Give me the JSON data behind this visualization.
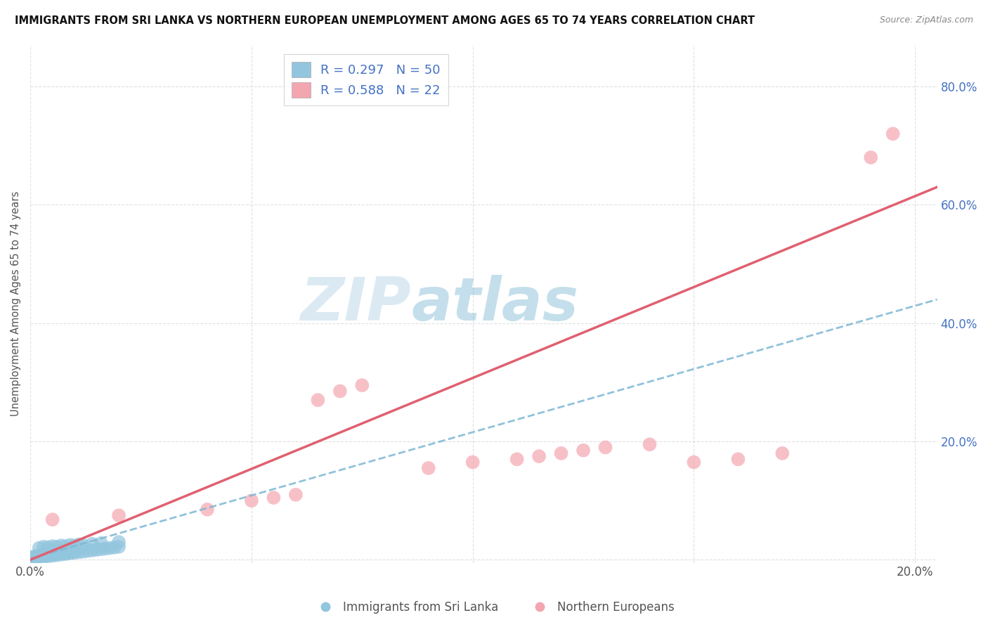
{
  "title": "IMMIGRANTS FROM SRI LANKA VS NORTHERN EUROPEAN UNEMPLOYMENT AMONG AGES 65 TO 74 YEARS CORRELATION CHART",
  "source": "Source: ZipAtlas.com",
  "ylabel": "Unemployment Among Ages 65 to 74 years",
  "xlim": [
    0,
    0.205
  ],
  "ylim": [
    -0.005,
    0.87
  ],
  "ytick_vals": [
    0.0,
    0.2,
    0.4,
    0.6,
    0.8
  ],
  "ytick_labels": [
    "",
    "20.0%",
    "40.0%",
    "60.0%",
    "80.0%"
  ],
  "xtick_vals": [
    0.0,
    0.05,
    0.1,
    0.15,
    0.2
  ],
  "xtick_labels": [
    "0.0%",
    "",
    "",
    "",
    "20.0%"
  ],
  "legend_r1": "R = 0.297",
  "legend_n1": "N = 50",
  "legend_r2": "R = 0.588",
  "legend_n2": "N = 22",
  "legend_label1": "Immigrants from Sri Lanka",
  "legend_label2": "Northern Europeans",
  "color_blue": "#92C5DE",
  "color_pink": "#F4A6B0",
  "line_color_blue": "#7EB8D4",
  "line_color_pink": "#E06070",
  "watermark_zip": "ZIP",
  "watermark_atlas": "atlas",
  "blue_points": [
    [
      0.0005,
      0.002
    ],
    [
      0.001,
      0.003
    ],
    [
      0.001,
      0.005
    ],
    [
      0.0015,
      0.003
    ],
    [
      0.0005,
      0.004
    ],
    [
      0.001,
      0.006
    ],
    [
      0.002,
      0.005
    ],
    [
      0.002,
      0.008
    ],
    [
      0.003,
      0.005
    ],
    [
      0.003,
      0.007
    ],
    [
      0.003,
      0.009
    ],
    [
      0.004,
      0.006
    ],
    [
      0.004,
      0.008
    ],
    [
      0.005,
      0.007
    ],
    [
      0.005,
      0.009
    ],
    [
      0.005,
      0.011
    ],
    [
      0.006,
      0.008
    ],
    [
      0.006,
      0.01
    ],
    [
      0.007,
      0.009
    ],
    [
      0.007,
      0.011
    ],
    [
      0.008,
      0.01
    ],
    [
      0.008,
      0.012
    ],
    [
      0.009,
      0.011
    ],
    [
      0.009,
      0.013
    ],
    [
      0.01,
      0.012
    ],
    [
      0.01,
      0.014
    ],
    [
      0.011,
      0.013
    ],
    [
      0.012,
      0.014
    ],
    [
      0.013,
      0.015
    ],
    [
      0.014,
      0.016
    ],
    [
      0.015,
      0.017
    ],
    [
      0.016,
      0.018
    ],
    [
      0.017,
      0.019
    ],
    [
      0.018,
      0.02
    ],
    [
      0.019,
      0.021
    ],
    [
      0.02,
      0.022
    ],
    [
      0.002,
      0.02
    ],
    [
      0.003,
      0.022
    ],
    [
      0.004,
      0.021
    ],
    [
      0.005,
      0.023
    ],
    [
      0.006,
      0.022
    ],
    [
      0.007,
      0.024
    ],
    [
      0.008,
      0.023
    ],
    [
      0.009,
      0.025
    ],
    [
      0.01,
      0.024
    ],
    [
      0.011,
      0.026
    ],
    [
      0.012,
      0.025
    ],
    [
      0.014,
      0.027
    ],
    [
      0.016,
      0.028
    ],
    [
      0.02,
      0.03
    ]
  ],
  "pink_points": [
    [
      0.005,
      0.068
    ],
    [
      0.02,
      0.075
    ],
    [
      0.04,
      0.085
    ],
    [
      0.05,
      0.1
    ],
    [
      0.055,
      0.105
    ],
    [
      0.06,
      0.11
    ],
    [
      0.065,
      0.27
    ],
    [
      0.07,
      0.285
    ],
    [
      0.075,
      0.295
    ],
    [
      0.09,
      0.155
    ],
    [
      0.1,
      0.165
    ],
    [
      0.11,
      0.17
    ],
    [
      0.115,
      0.175
    ],
    [
      0.12,
      0.18
    ],
    [
      0.125,
      0.185
    ],
    [
      0.13,
      0.19
    ],
    [
      0.14,
      0.195
    ],
    [
      0.15,
      0.165
    ],
    [
      0.16,
      0.17
    ],
    [
      0.17,
      0.18
    ],
    [
      0.19,
      0.68
    ],
    [
      0.195,
      0.72
    ]
  ],
  "blue_line_x": [
    0.0,
    0.205
  ],
  "blue_line_y": [
    0.002,
    0.44
  ],
  "pink_line_x": [
    0.0,
    0.205
  ],
  "pink_line_y": [
    0.0,
    0.63
  ]
}
